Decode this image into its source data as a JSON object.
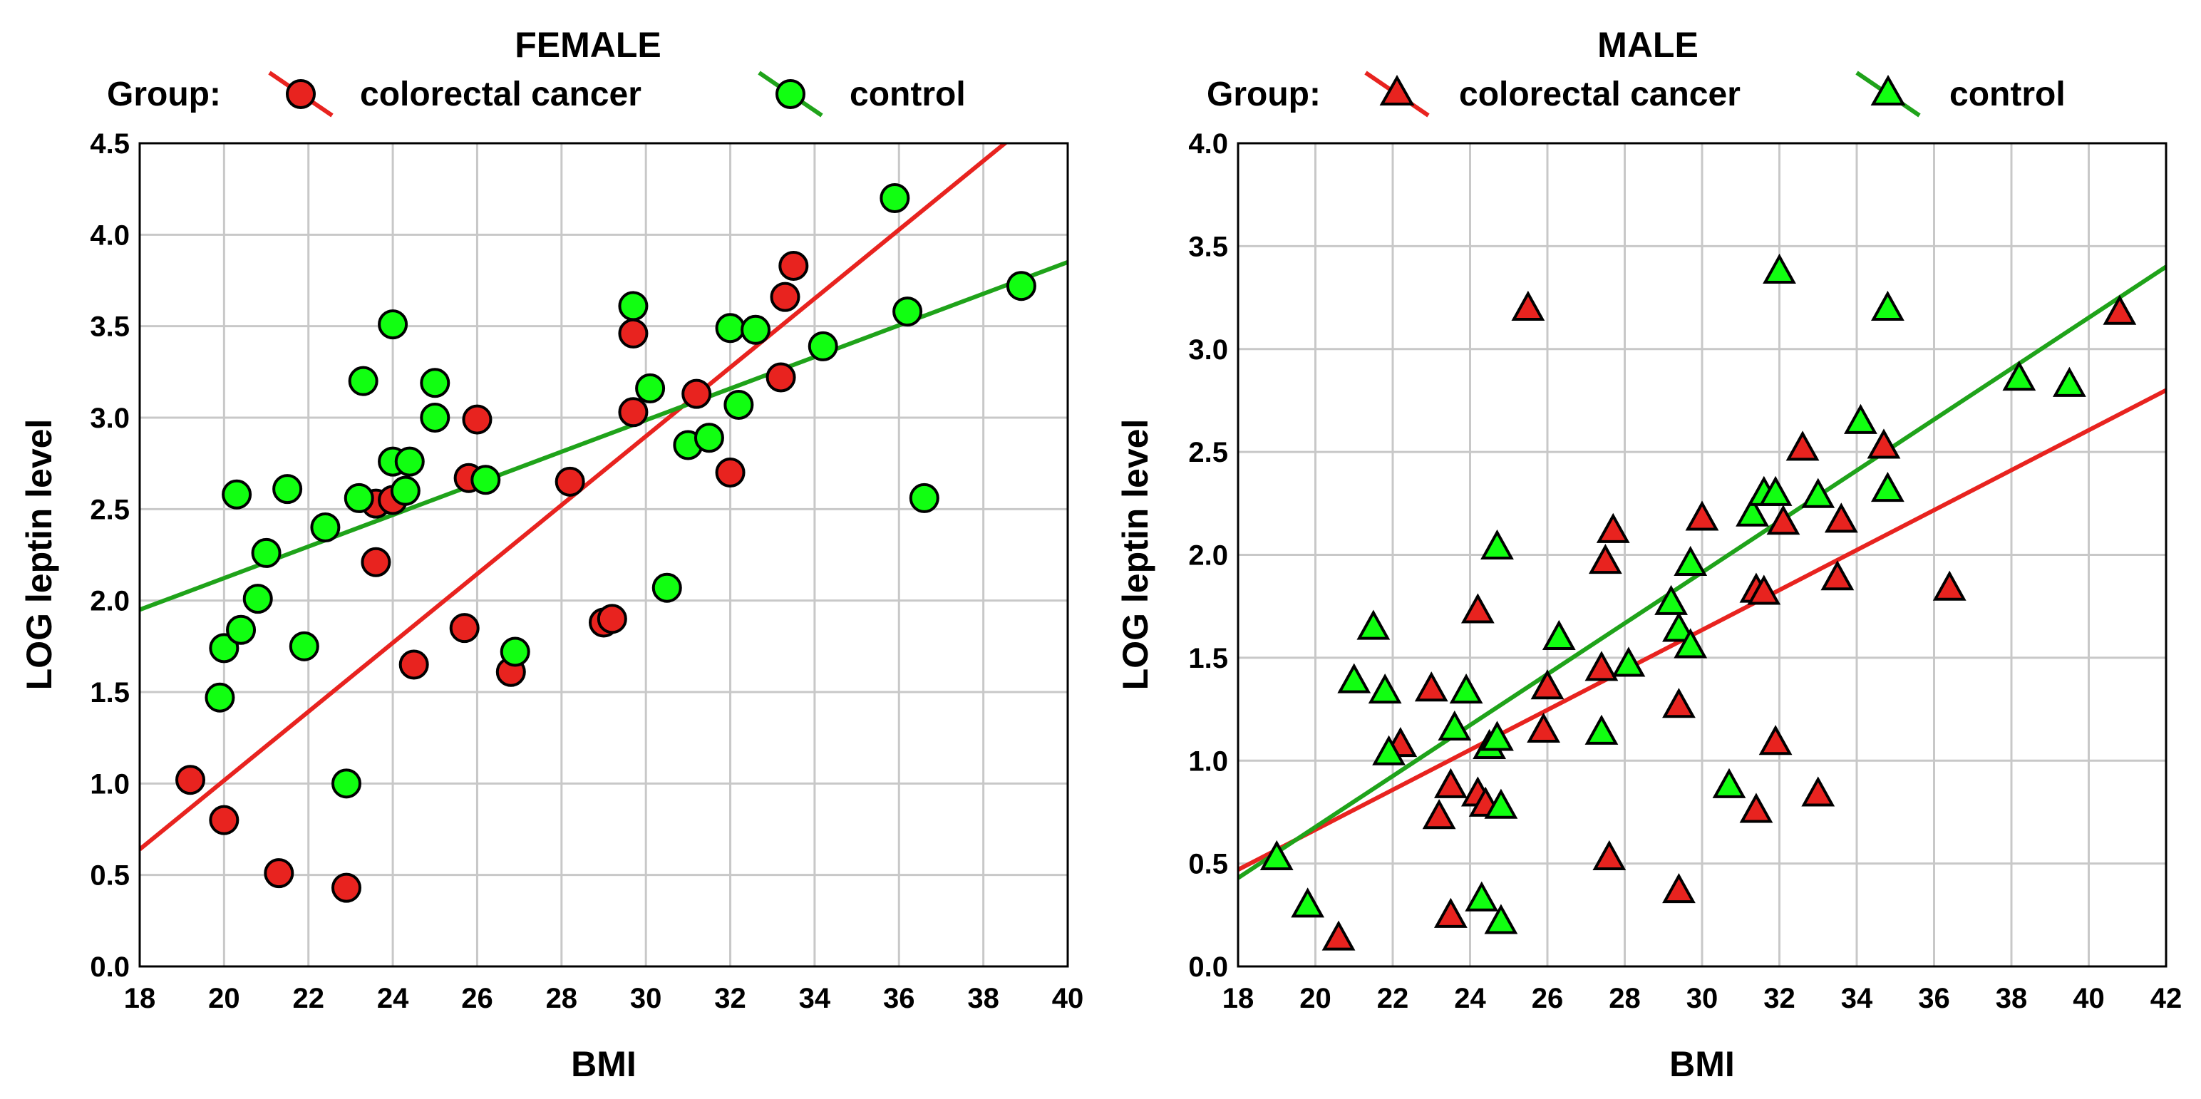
{
  "chart_data": [
    {
      "type": "scatter",
      "title": "FEMALE",
      "xlabel": "BMI",
      "ylabel": "LOG leptin level",
      "xlim": [
        18,
        40
      ],
      "ylim": [
        0.0,
        4.5
      ],
      "xticks": [
        "18",
        "20",
        "22",
        "24",
        "26",
        "28",
        "30",
        "32",
        "34",
        "36",
        "38",
        "40"
      ],
      "yticks": [
        "0.0",
        "0.5",
        "1.0",
        "1.5",
        "2.0",
        "2.5",
        "3.0",
        "3.5",
        "4.0",
        "4.5"
      ],
      "grid": true,
      "marker": "circle",
      "legend": {
        "position": "top",
        "prefix": "Group:",
        "entries": [
          "colorectal cancer",
          "control"
        ]
      },
      "series": [
        {
          "name": "colorectal cancer",
          "color": "#e8231f",
          "fit": [
            [
              18,
              0.64
            ],
            [
              40,
              4.78
            ]
          ],
          "points": [
            [
              19.2,
              1.02
            ],
            [
              20.0,
              0.8
            ],
            [
              21.3,
              0.51
            ],
            [
              22.9,
              0.43
            ],
            [
              23.6,
              2.53
            ],
            [
              23.6,
              2.21
            ],
            [
              24.0,
              2.55
            ],
            [
              24.5,
              1.65
            ],
            [
              25.7,
              1.85
            ],
            [
              25.8,
              2.67
            ],
            [
              26.0,
              2.99
            ],
            [
              26.8,
              1.61
            ],
            [
              28.2,
              2.65
            ],
            [
              29.0,
              1.88
            ],
            [
              29.2,
              1.9
            ],
            [
              29.7,
              3.46
            ],
            [
              29.7,
              3.03
            ],
            [
              31.2,
              3.13
            ],
            [
              32.0,
              2.7
            ],
            [
              33.2,
              3.22
            ],
            [
              33.3,
              3.66
            ],
            [
              33.5,
              3.83
            ]
          ]
        },
        {
          "name": "control",
          "color": "#1fa31a",
          "fit": [
            [
              18,
              1.95
            ],
            [
              40,
              3.85
            ]
          ],
          "points": [
            [
              19.9,
              1.47
            ],
            [
              20.0,
              1.74
            ],
            [
              20.3,
              2.58
            ],
            [
              20.4,
              1.84
            ],
            [
              20.8,
              2.01
            ],
            [
              21.0,
              2.26
            ],
            [
              21.5,
              2.61
            ],
            [
              21.9,
              1.75
            ],
            [
              22.4,
              2.4
            ],
            [
              22.9,
              1.0
            ],
            [
              23.2,
              2.56
            ],
            [
              23.3,
              3.2
            ],
            [
              24.0,
              2.76
            ],
            [
              24.0,
              3.51
            ],
            [
              24.3,
              2.6
            ],
            [
              24.4,
              2.76
            ],
            [
              25.0,
              3.19
            ],
            [
              25.0,
              3.0
            ],
            [
              26.2,
              2.66
            ],
            [
              26.9,
              1.72
            ],
            [
              29.7,
              3.61
            ],
            [
              30.1,
              3.16
            ],
            [
              30.5,
              2.07
            ],
            [
              31.0,
              2.85
            ],
            [
              31.5,
              2.89
            ],
            [
              32.0,
              3.49
            ],
            [
              32.2,
              3.07
            ],
            [
              32.6,
              3.48
            ],
            [
              34.2,
              3.39
            ],
            [
              35.9,
              4.2
            ],
            [
              36.2,
              3.58
            ],
            [
              36.6,
              2.56
            ],
            [
              38.9,
              3.72
            ]
          ]
        }
      ]
    },
    {
      "type": "scatter",
      "title": "MALE",
      "xlabel": "BMI",
      "ylabel": "LOG leptin level",
      "xlim": [
        18,
        42
      ],
      "ylim": [
        0.0,
        4.0
      ],
      "xticks": [
        "18",
        "20",
        "22",
        "24",
        "26",
        "28",
        "30",
        "32",
        "34",
        "36",
        "38",
        "40",
        "42"
      ],
      "yticks": [
        "0.0",
        "0.5",
        "1.0",
        "1.5",
        "2.0",
        "2.5",
        "3.0",
        "3.5",
        "4.0"
      ],
      "grid": true,
      "marker": "triangle",
      "legend": {
        "position": "top",
        "prefix": "Group:",
        "entries": [
          "colorectal cancer",
          "control"
        ]
      },
      "series": [
        {
          "name": "colorectal cancer",
          "color": "#e8231f",
          "fit": [
            [
              18,
              0.47
            ],
            [
              42,
              2.8
            ]
          ],
          "points": [
            [
              20.6,
              0.14
            ],
            [
              22.2,
              1.08
            ],
            [
              23.0,
              1.35
            ],
            [
              23.2,
              0.73
            ],
            [
              23.5,
              0.25
            ],
            [
              23.5,
              0.88
            ],
            [
              24.2,
              1.73
            ],
            [
              24.2,
              0.84
            ],
            [
              24.4,
              0.79
            ],
            [
              25.5,
              3.2
            ],
            [
              26.0,
              1.36
            ],
            [
              25.9,
              1.15
            ],
            [
              27.4,
              1.45
            ],
            [
              27.5,
              1.97
            ],
            [
              27.6,
              0.53
            ],
            [
              27.7,
              2.12
            ],
            [
              29.4,
              1.27
            ],
            [
              29.4,
              0.37
            ],
            [
              30.0,
              2.18
            ],
            [
              31.4,
              0.76
            ],
            [
              31.4,
              1.83
            ],
            [
              31.6,
              1.82
            ],
            [
              31.9,
              1.09
            ],
            [
              32.1,
              2.16
            ],
            [
              32.6,
              2.52
            ],
            [
              33.0,
              0.84
            ],
            [
              33.5,
              1.89
            ],
            [
              33.6,
              2.17
            ],
            [
              34.7,
              2.53
            ],
            [
              36.4,
              1.84
            ],
            [
              40.8,
              3.18
            ]
          ]
        },
        {
          "name": "control",
          "color": "#1fa31a",
          "fit": [
            [
              18,
              0.43
            ],
            [
              42,
              3.4
            ]
          ],
          "points": [
            [
              19.0,
              0.53
            ],
            [
              19.8,
              0.3
            ],
            [
              21.0,
              1.39
            ],
            [
              21.5,
              1.65
            ],
            [
              21.8,
              1.34
            ],
            [
              21.9,
              1.04
            ],
            [
              23.6,
              1.16
            ],
            [
              23.9,
              1.34
            ],
            [
              24.3,
              0.33
            ],
            [
              24.7,
              2.04
            ],
            [
              24.5,
              1.07
            ],
            [
              24.7,
              1.11
            ],
            [
              24.8,
              0.22
            ],
            [
              24.8,
              0.78
            ],
            [
              26.3,
              1.6
            ],
            [
              27.4,
              1.14
            ],
            [
              28.1,
              1.47
            ],
            [
              29.2,
              1.77
            ],
            [
              29.4,
              1.64
            ],
            [
              29.7,
              1.96
            ],
            [
              29.7,
              1.56
            ],
            [
              30.7,
              0.88
            ],
            [
              31.3,
              2.2
            ],
            [
              31.6,
              2.3
            ],
            [
              31.9,
              2.3
            ],
            [
              32.0,
              3.38
            ],
            [
              33.0,
              2.29
            ],
            [
              34.1,
              2.65
            ],
            [
              34.8,
              2.32
            ],
            [
              34.8,
              3.2
            ],
            [
              38.2,
              2.86
            ],
            [
              39.5,
              2.83
            ]
          ]
        }
      ]
    }
  ]
}
